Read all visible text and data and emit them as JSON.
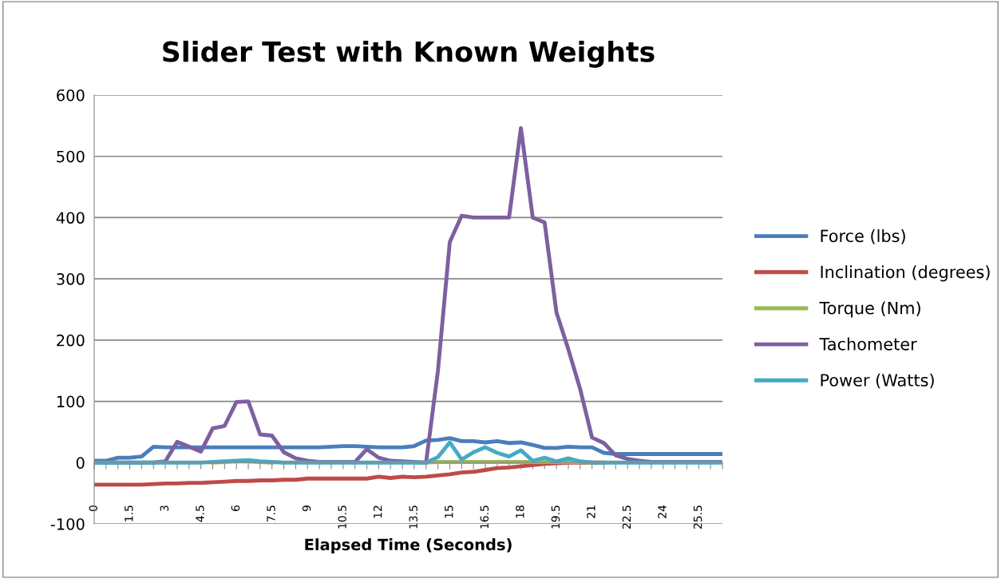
{
  "chart_data": {
    "type": "line",
    "title": "Slider Test with Known Weights",
    "xlabel": "Elapsed Time (Seconds)",
    "categories": [
      "0",
      null,
      null,
      "1.5",
      null,
      null,
      "3",
      null,
      null,
      "4.5",
      null,
      null,
      "6",
      null,
      null,
      "7.5",
      null,
      null,
      "9",
      null,
      null,
      "10.5",
      null,
      null,
      "12",
      null,
      null,
      "13.5",
      null,
      null,
      "15",
      null,
      null,
      "16.5",
      null,
      null,
      "18",
      null,
      null,
      "19.5",
      null,
      null,
      "21",
      null,
      null,
      "22.5",
      null,
      null,
      "24",
      null,
      null,
      "25.5",
      null,
      null
    ],
    "ylim": [
      -100,
      600
    ],
    "yticks": [
      -100,
      0,
      100,
      200,
      300,
      400,
      500,
      600
    ],
    "grid": "y",
    "legend": "right",
    "marker": "none",
    "line_style": "solid",
    "series": [
      {
        "name": "Force (lbs)",
        "color": "#4a7ebb",
        "values": [
          3,
          3,
          8,
          8,
          10,
          26,
          25,
          25,
          25,
          25,
          25,
          25,
          25,
          25,
          25,
          25,
          25,
          25,
          25,
          25,
          26,
          27,
          27,
          26,
          25,
          25,
          25,
          27,
          36,
          37,
          40,
          35,
          35,
          33,
          35,
          32,
          33,
          29,
          24,
          24,
          26,
          25,
          25,
          16,
          14,
          14,
          14,
          14,
          14,
          14,
          14,
          14,
          14,
          14
        ]
      },
      {
        "name": "Inclination (degrees)",
        "color": "#be4b48",
        "values": [
          -36,
          -36,
          -36,
          -36,
          -36,
          -35,
          -34,
          -34,
          -33,
          -33,
          -32,
          -31,
          -30,
          -30,
          -29,
          -29,
          -28,
          -28,
          -26,
          -26,
          -26,
          -26,
          -26,
          -26,
          -23,
          -25,
          -23,
          -24,
          -23,
          -21,
          -19,
          -16,
          -15,
          -12,
          -9,
          -8,
          -6,
          -4,
          -2,
          -1,
          0,
          0,
          0,
          0,
          null,
          null,
          null,
          null,
          null,
          null,
          null,
          null,
          null,
          null
        ]
      },
      {
        "name": "Torque (Nm)",
        "color": "#98b954",
        "values": [
          null,
          null,
          null,
          null,
          null,
          null,
          null,
          null,
          null,
          null,
          0,
          1,
          2,
          2,
          1,
          0,
          null,
          null,
          null,
          null,
          null,
          null,
          null,
          null,
          null,
          null,
          null,
          null,
          0,
          1,
          1,
          1,
          1,
          1,
          1,
          1,
          1,
          1,
          1,
          1,
          1,
          1,
          0,
          null,
          null,
          null,
          null,
          null,
          null,
          null,
          null,
          null,
          null,
          null
        ]
      },
      {
        "name": "Tachometer",
        "color": "#7d60a0",
        "values": [
          0,
          0,
          0,
          0,
          0,
          0,
          2,
          34,
          26,
          18,
          56,
          60,
          99,
          100,
          46,
          44,
          17,
          7,
          3,
          1,
          1,
          1,
          1,
          22,
          8,
          3,
          2,
          1,
          0,
          150,
          360,
          403,
          400,
          400,
          400,
          400,
          546,
          400,
          392,
          245,
          185,
          120,
          41,
          32,
          12,
          6,
          3,
          1,
          1,
          1,
          1,
          1,
          1,
          1
        ]
      },
      {
        "name": "Power (Watts)",
        "color": "#46aac5",
        "values": [
          0,
          0,
          0,
          0,
          0,
          0,
          0,
          0,
          0,
          0,
          1,
          2,
          3,
          4,
          2,
          1,
          0,
          0,
          0,
          0,
          0,
          0,
          0,
          0,
          0,
          0,
          0,
          0,
          0,
          9,
          33,
          5,
          17,
          25,
          16,
          10,
          20,
          3,
          8,
          2,
          7,
          2,
          0,
          0,
          0,
          0,
          0,
          0,
          0,
          0,
          0,
          0,
          0,
          0
        ]
      }
    ]
  }
}
